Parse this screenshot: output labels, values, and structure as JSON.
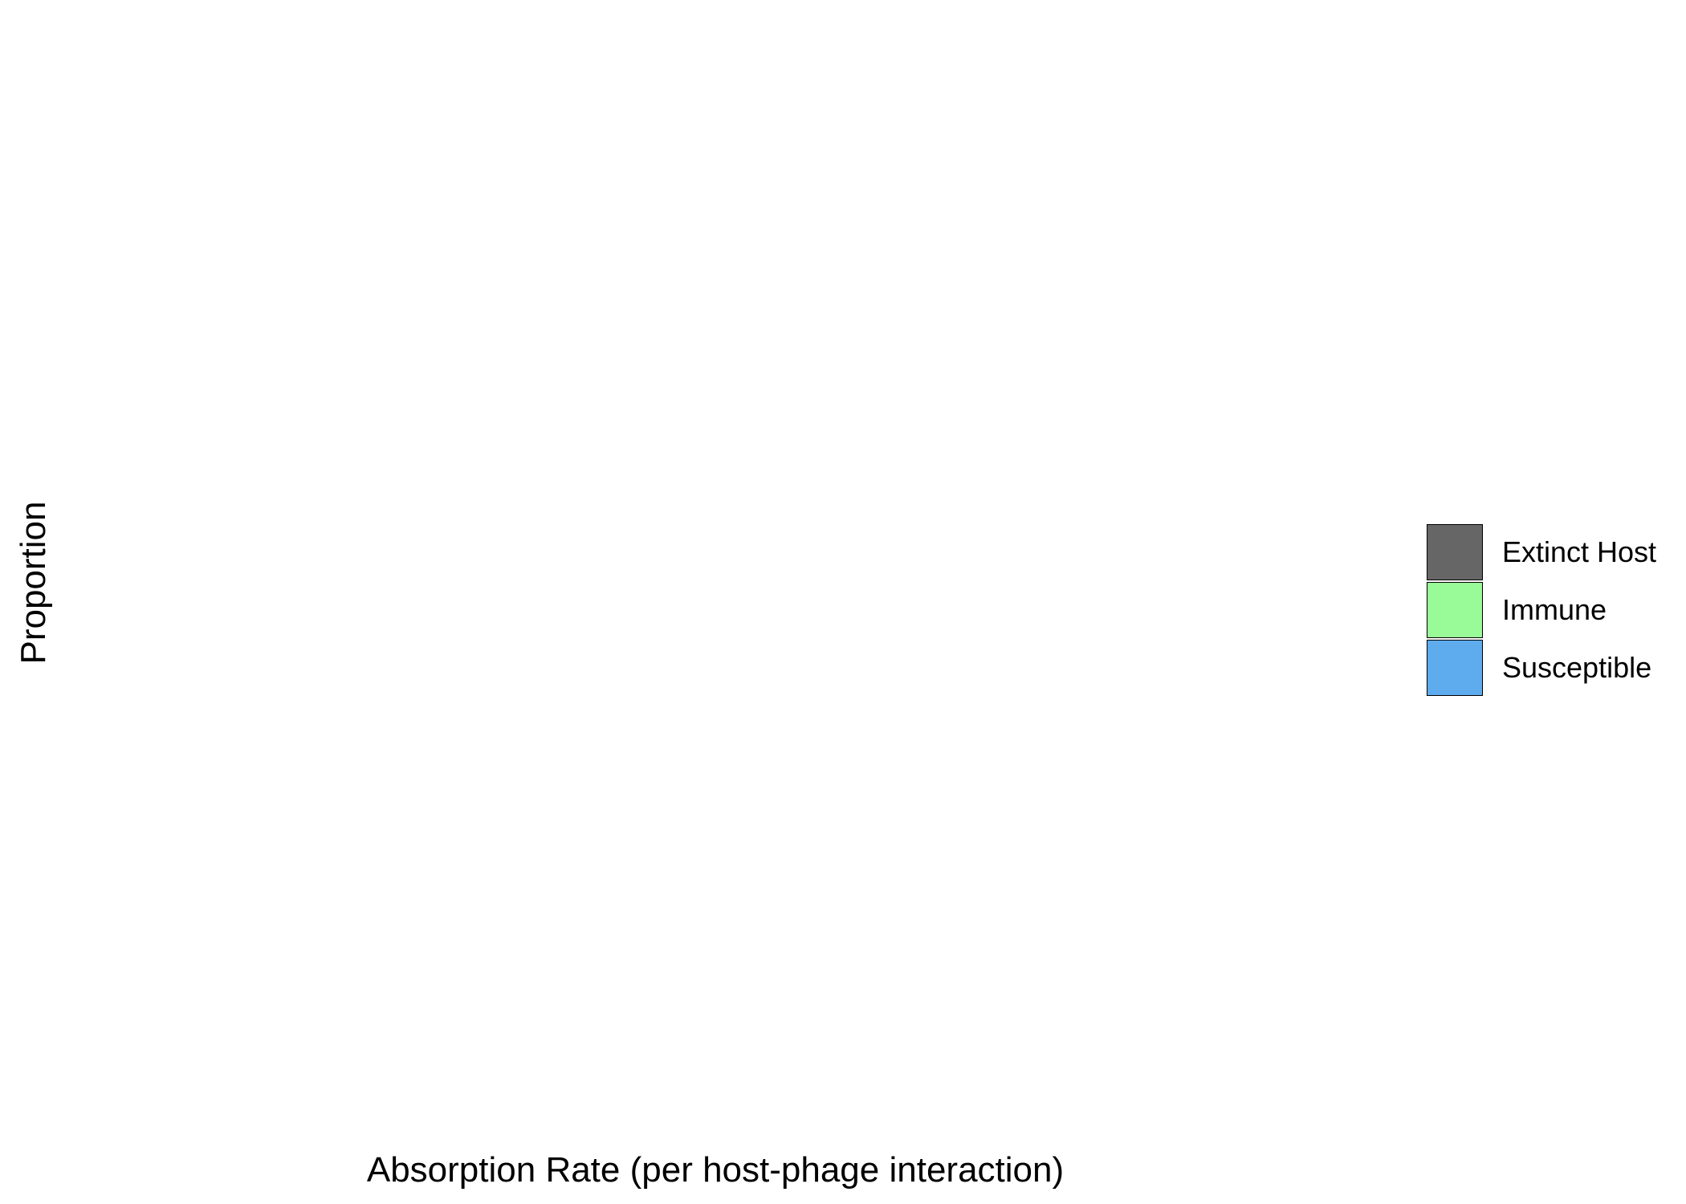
{
  "chart_data": {
    "type": "bar",
    "title": "",
    "xlabel": "Absorption Rate (per host-phage interaction)",
    "ylabel": "Proportion",
    "categories": [],
    "series": [
      {
        "name": "Extinct Host",
        "color": "#666666",
        "values": []
      },
      {
        "name": "Immune",
        "color": "#98FB98",
        "values": []
      },
      {
        "name": "Susceptible",
        "color": "#5EACEE",
        "values": []
      }
    ],
    "legend_position": "right",
    "grid": false
  }
}
